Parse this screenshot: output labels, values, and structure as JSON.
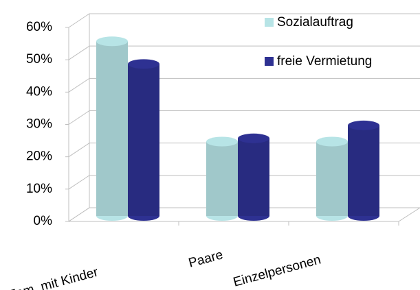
{
  "chart_data": {
    "type": "bar3d",
    "categories": [
      "Fam. mit Kinder",
      "Paare",
      "Einzelpersonen"
    ],
    "series": [
      {
        "name": "Sozialauftrag",
        "color": "#b7e4e6",
        "values": [
          54,
          23,
          23
        ]
      },
      {
        "name": "freie Vermietung",
        "color": "#2e3192",
        "values": [
          47,
          24,
          28
        ]
      }
    ],
    "ylim": [
      0,
      60
    ],
    "yticks": [
      {
        "value": 0,
        "label": "0%"
      },
      {
        "value": 10,
        "label": "10%"
      },
      {
        "value": 20,
        "label": "20%"
      },
      {
        "value": 30,
        "label": "30%"
      },
      {
        "value": 40,
        "label": "40%"
      },
      {
        "value": 50,
        "label": "50%"
      },
      {
        "value": 60,
        "label": "60%"
      }
    ],
    "grid": true,
    "legend": "top-right"
  }
}
